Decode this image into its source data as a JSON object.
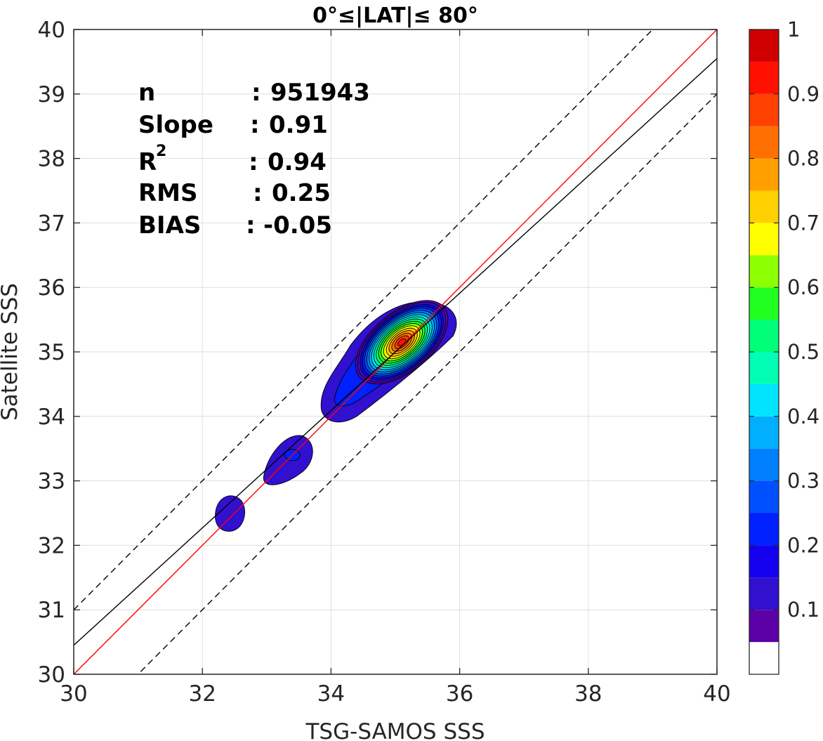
{
  "chart_data": {
    "type": "heatmap",
    "title": "0°≤|LAT|≤ 80°",
    "xlabel": "TSG-SAMOS SSS",
    "ylabel": "Satellite SSS",
    "xlim": [
      30,
      40
    ],
    "ylim": [
      30,
      40
    ],
    "xticks": [
      "30",
      "32",
      "34",
      "36",
      "38",
      "40"
    ],
    "yticks": [
      "30",
      "31",
      "32",
      "33",
      "34",
      "35",
      "36",
      "37",
      "38",
      "39",
      "40"
    ],
    "grid": true,
    "stats": [
      {
        "label": "n",
        "sep": ":",
        "value": "951943"
      },
      {
        "label": "Slope",
        "sep": ":",
        "value": "0.91"
      },
      {
        "label": "R",
        "sup": "2",
        "sep": ":",
        "value": "0.94"
      },
      {
        "label": "RMS",
        "sep": ":",
        "value": "0.25"
      },
      {
        "label": "BIAS",
        "sep": ":",
        "value": "-0.05"
      }
    ],
    "lines": [
      {
        "kind": "one-to-one",
        "color": "#ff0000",
        "style": "solid",
        "slope": 1.0,
        "intercept": 0.0
      },
      {
        "kind": "regression-fit",
        "color": "#000000",
        "style": "solid",
        "slope": 0.91,
        "intercept": 3.15
      },
      {
        "kind": "upper-bound",
        "color": "#000000",
        "style": "dashed",
        "slope": 1.0,
        "intercept": 1.0
      },
      {
        "kind": "lower-bound",
        "color": "#000000",
        "style": "dashed",
        "slope": 1.0,
        "intercept": -1.0
      }
    ],
    "density_peaks": [
      {
        "x": 35.1,
        "y": 35.15,
        "peak_density": 0.9
      },
      {
        "x": 33.4,
        "y": 33.4,
        "peak_density": 0.2
      },
      {
        "x": 32.45,
        "y": 32.5,
        "peak_density": 0.1
      }
    ],
    "colorbar": {
      "range": [
        0,
        1
      ],
      "tick_labels": [
        "0.1",
        "0.2",
        "0.3",
        "0.4",
        "0.5",
        "0.6",
        "0.7",
        "0.8",
        "0.9",
        "1"
      ],
      "tick_values": [
        0.1,
        0.2,
        0.3,
        0.4,
        0.5,
        0.6,
        0.7,
        0.8,
        0.9,
        1.0
      ],
      "levels": [
        0.05,
        0.1,
        0.15,
        0.2,
        0.25,
        0.3,
        0.35,
        0.4,
        0.45,
        0.5,
        0.55,
        0.6,
        0.65,
        0.7,
        0.75,
        0.8,
        0.85,
        0.9,
        0.95,
        1.0
      ],
      "colors": [
        "#ffffff",
        "#5c00a8",
        "#3210d0",
        "#1400ee",
        "#0020ff",
        "#0050ff",
        "#0080ff",
        "#00b0ff",
        "#00e4ff",
        "#00ffb4",
        "#00ff78",
        "#20ff20",
        "#8cff00",
        "#ffff00",
        "#ffd000",
        "#ffa000",
        "#ff7000",
        "#ff4000",
        "#ff1000",
        "#d00000",
        "#880000"
      ]
    }
  }
}
